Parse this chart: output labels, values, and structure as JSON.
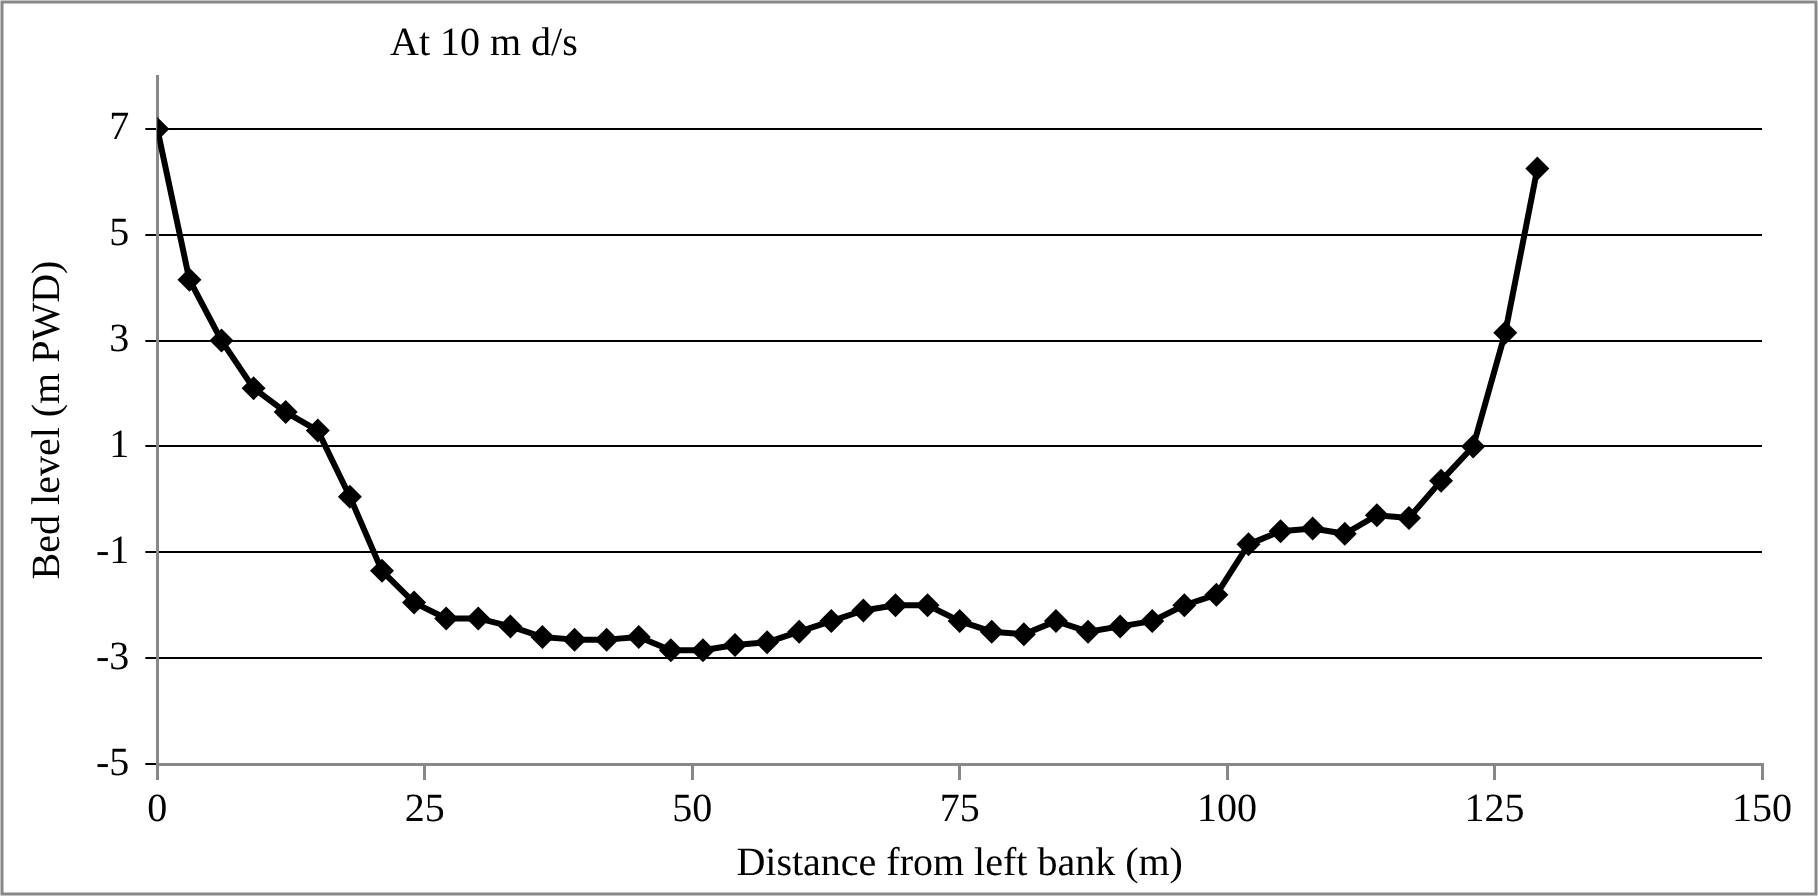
{
  "chart_data": {
    "type": "line",
    "title": "At 10 m d/s",
    "xlabel": "Distance from left bank (m)",
    "ylabel": "Bed level (m PWD)",
    "x": [
      0,
      3,
      6,
      9,
      12,
      15,
      18,
      21,
      24,
      27,
      30,
      33,
      36,
      39,
      42,
      45,
      48,
      51,
      54,
      57,
      60,
      63,
      66,
      69,
      72,
      75,
      78,
      81,
      84,
      87,
      90,
      93,
      96,
      99,
      102,
      105,
      108,
      111,
      114,
      117,
      120,
      123,
      126,
      129
    ],
    "series": [
      {
        "color": "#000000",
        "values": [
          7,
          4.15,
          3.0,
          2.1,
          1.65,
          1.3,
          0.05,
          -1.35,
          -1.95,
          -2.25,
          -2.25,
          -2.4,
          -2.6,
          -2.65,
          -2.65,
          -2.6,
          -2.85,
          -2.85,
          -2.75,
          -2.7,
          -2.5,
          -2.3,
          -2.1,
          -2.0,
          -2.0,
          -2.3,
          -2.5,
          -2.55,
          -2.3,
          -2.5,
          -2.4,
          -2.3,
          -2.0,
          -1.8,
          -0.85,
          -0.6,
          -0.55,
          -0.65,
          -0.3,
          -0.35,
          0.35,
          1.0,
          3.15,
          6.25
        ]
      }
    ],
    "xlim": [
      0,
      150
    ],
    "xticks": [
      0,
      25,
      50,
      75,
      100,
      125,
      150
    ],
    "ylim": [
      -5,
      8
    ],
    "yticks": [
      -5,
      -3,
      -1,
      1,
      3,
      5,
      7
    ],
    "grid": "y",
    "legend": false,
    "marker": "diamond",
    "line_style": "solid"
  }
}
